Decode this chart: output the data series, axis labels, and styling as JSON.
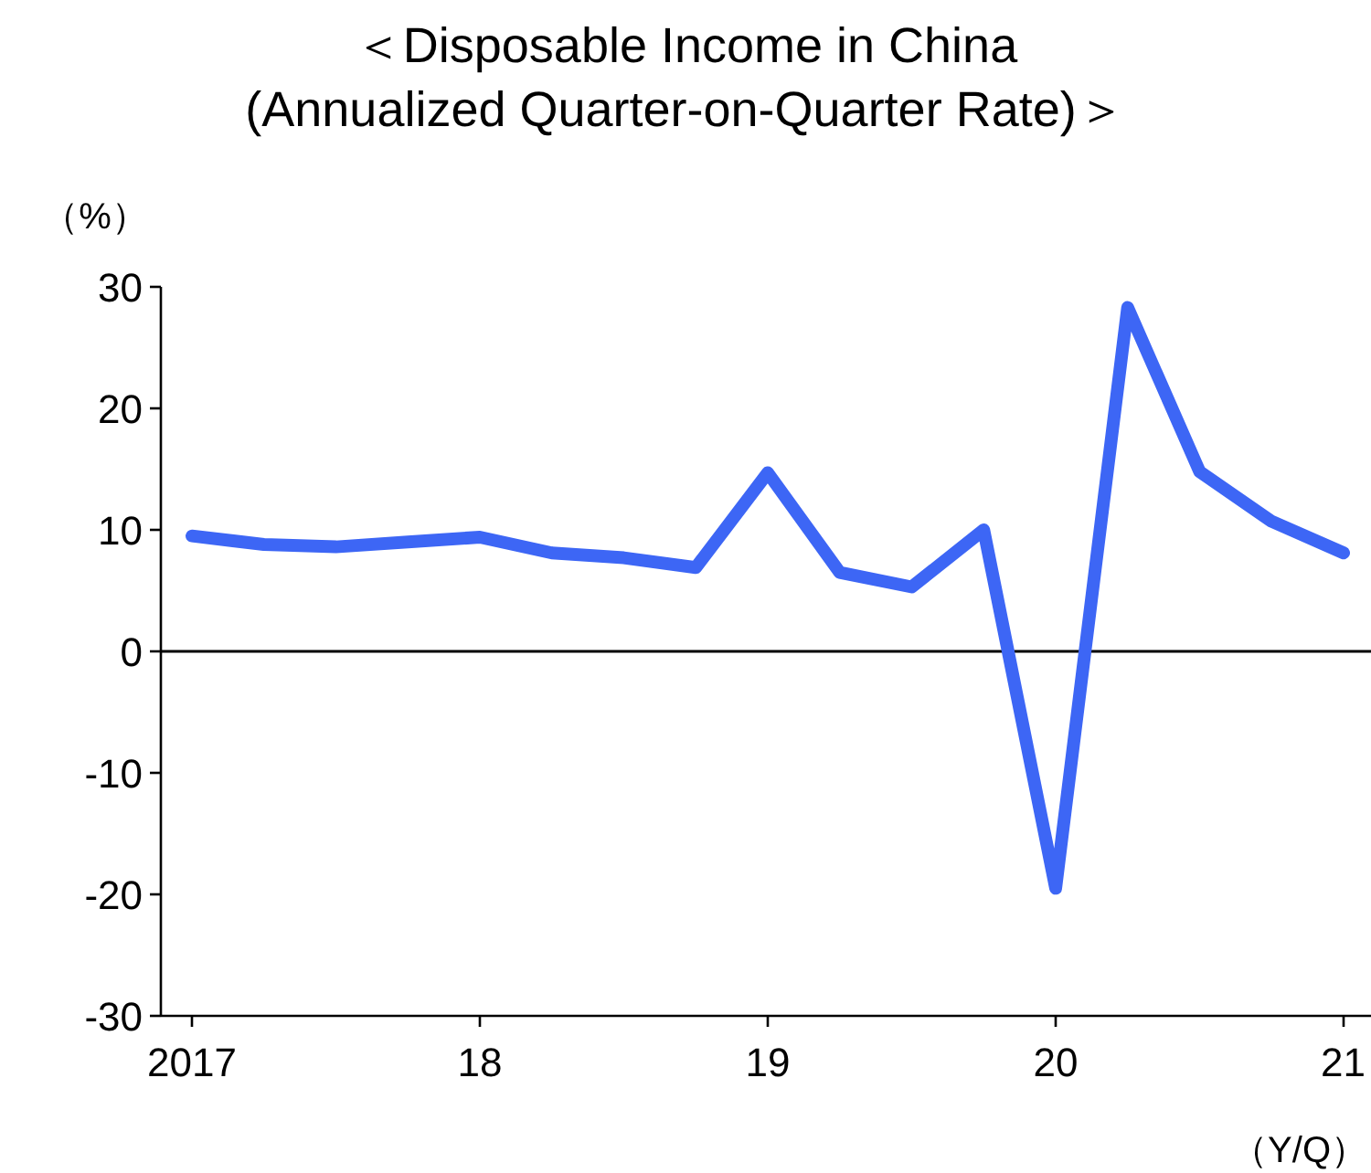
{
  "chart_data": {
    "type": "line",
    "title": "＜Disposable Income in China\n(Annualized Quarter-on-Quarter Rate)＞",
    "ylabel": "（%）",
    "xlabel": "（Y/Q）",
    "categories": [
      "2017",
      null,
      null,
      null,
      "18",
      null,
      null,
      null,
      "19",
      null,
      null,
      null,
      "20",
      null,
      null,
      null,
      "21"
    ],
    "series": [
      {
        "color": "#3d66f5",
        "values": [
          9.5,
          8.8,
          8.6,
          9.0,
          9.4,
          8.1,
          7.7,
          6.9,
          14.7,
          6.5,
          5.3,
          10.0,
          -19.5,
          28.3,
          14.8,
          10.7,
          8.1
        ]
      }
    ],
    "ylim": [
      -30,
      30
    ],
    "yticks": [
      -30,
      -20,
      -10,
      0,
      10,
      20,
      30
    ],
    "ref_lines": [
      {
        "axis": "y",
        "value": 0,
        "color": "#000000"
      }
    ]
  }
}
